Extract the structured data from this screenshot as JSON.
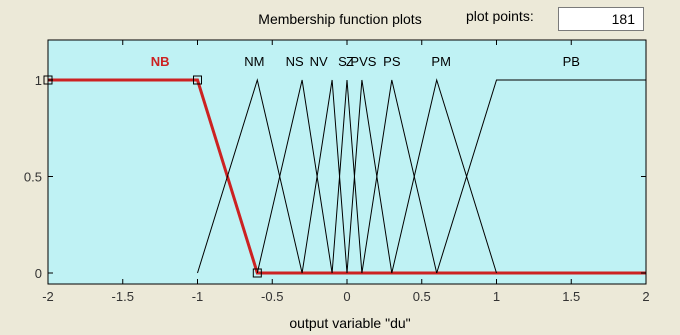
{
  "title": "Membership function plots",
  "plot_points": {
    "label": "plot points:",
    "value": "181"
  },
  "chart_data": {
    "type": "line",
    "xlabel": "output variable \"du\"",
    "ylabel": "",
    "xlim": [
      -2,
      2
    ],
    "ylim": [
      0,
      1
    ],
    "x_ticks": [
      "-2",
      "-1.5",
      "-1",
      "-0.5",
      "0",
      "0.5",
      "1",
      "1.5",
      "2"
    ],
    "y_ticks": [
      "0",
      "0.5",
      "1"
    ],
    "grid": false,
    "background": "#bff2f4",
    "selected_color": "#cc2222",
    "series": [
      {
        "name": "NB",
        "selected": true,
        "points": [
          [
            -2,
            1
          ],
          [
            -1,
            1
          ],
          [
            -0.6,
            0
          ],
          [
            2,
            0
          ]
        ]
      },
      {
        "name": "NM",
        "points": [
          [
            -1,
            0
          ],
          [
            -0.6,
            1
          ],
          [
            -0.3,
            0
          ]
        ]
      },
      {
        "name": "NS",
        "points": [
          [
            -0.6,
            0
          ],
          [
            -0.3,
            1
          ],
          [
            -0.1,
            0
          ]
        ]
      },
      {
        "name": "NVS",
        "points": [
          [
            -0.3,
            0
          ],
          [
            -0.1,
            1
          ],
          [
            0,
            0
          ]
        ]
      },
      {
        "name": "Z",
        "points": [
          [
            -0.1,
            0
          ],
          [
            0,
            1
          ],
          [
            0.1,
            0
          ]
        ]
      },
      {
        "name": "PVS",
        "points": [
          [
            0,
            0
          ],
          [
            0.1,
            1
          ],
          [
            0.3,
            0
          ]
        ]
      },
      {
        "name": "PS",
        "points": [
          [
            0.1,
            0
          ],
          [
            0.3,
            1
          ],
          [
            0.6,
            0
          ]
        ]
      },
      {
        "name": "PM",
        "points": [
          [
            0.3,
            0
          ],
          [
            0.6,
            1
          ],
          [
            1,
            0
          ]
        ]
      },
      {
        "name": "PB",
        "points": [
          [
            0.6,
            0
          ],
          [
            1,
            1
          ],
          [
            2,
            1
          ]
        ]
      }
    ],
    "labels": [
      {
        "text": "NB",
        "x": -1.25,
        "selected": true
      },
      {
        "text": "NM",
        "x": -0.62
      },
      {
        "text": "NS",
        "x": -0.35
      },
      {
        "text": "NV",
        "x": -0.19
      },
      {
        "text": "S",
        "x": -0.03
      },
      {
        "text": "Z",
        "x": 0.02
      },
      {
        "text": "PVS",
        "x": 0.11
      },
      {
        "text": "PS",
        "x": 0.3
      },
      {
        "text": "PM",
        "x": 0.63
      },
      {
        "text": "PB",
        "x": 1.5
      }
    ]
  }
}
